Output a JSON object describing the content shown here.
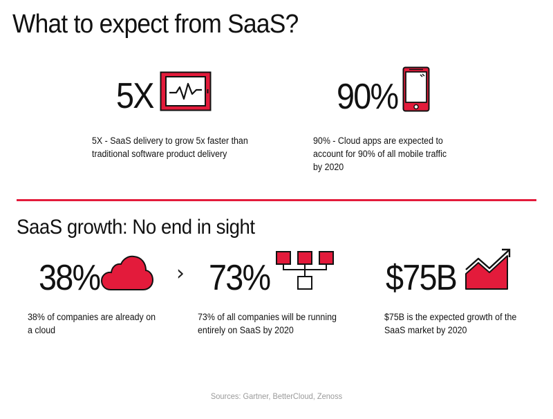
{
  "colors": {
    "accent": "#e31b3b",
    "text": "#111111",
    "muted": "#9a9a9a"
  },
  "section1": {
    "title": "What to expect from SaaS?",
    "stats": [
      {
        "value": "5X",
        "icon": "monitor-chart-icon",
        "description_lines": [
          "5X - SaaS delivery to grow 5x faster than",
          "traditional software product delivery"
        ]
      },
      {
        "value": "90%",
        "icon": "smartphone-icon",
        "description_lines": [
          "90% -  Cloud apps are expected to",
          "account for 90% of all mobile traffic",
          "by 2020"
        ]
      }
    ]
  },
  "section2": {
    "title": "SaaS growth: No end in sight",
    "chevron": "›",
    "stats": [
      {
        "value": "38%",
        "icon": "cloud-icon",
        "description_lines": [
          "38% of companies are already on",
          "a cloud"
        ]
      },
      {
        "value": "73%",
        "icon": "hierarchy-icon",
        "description_lines": [
          "73% of all companies will be running",
          "entirely on SaaS by 2020"
        ]
      },
      {
        "value": "$75B",
        "icon": "growth-chart-icon",
        "description_lines": [
          "$75B is the expected growth of the",
          "SaaS market by 2020"
        ]
      }
    ]
  },
  "footer": {
    "sources": "Sources: Gartner, BetterCloud, Zenoss"
  }
}
